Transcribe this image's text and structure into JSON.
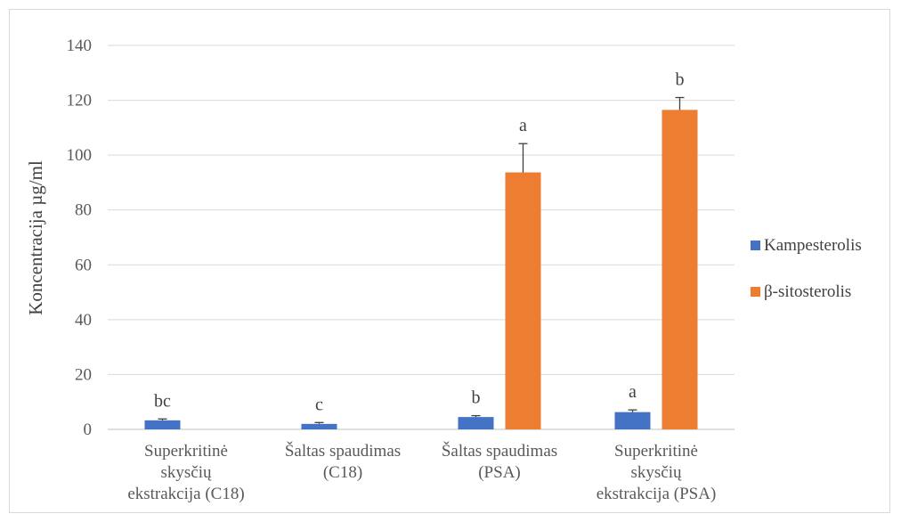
{
  "chart_data": {
    "type": "bar",
    "title": "",
    "xlabel": "",
    "ylabel": "Koncentracija µg/ml",
    "ylim": [
      0,
      140
    ],
    "yticks": [
      0,
      20,
      40,
      60,
      80,
      100,
      120,
      140
    ],
    "grid": true,
    "legend_position": "right",
    "categories": [
      [
        "Superkritinė",
        "skysčių",
        "ekstrakcija (C18)"
      ],
      [
        "Šaltas spaudimas",
        "(C18)"
      ],
      [
        "Šaltas spaudimas",
        "(PSA)"
      ],
      [
        "Superkritinė",
        "skysčių",
        "ekstrakcija (PSA)"
      ]
    ],
    "series": [
      {
        "name": "Kampesterolis",
        "color": "#4472c4",
        "values": [
          3.3,
          2.0,
          4.5,
          6.3
        ],
        "errors": [
          0.5,
          0.5,
          0.5,
          0.8
        ],
        "labels": [
          "bc",
          "c",
          "b",
          "a"
        ]
      },
      {
        "name": "β-sitosterolis",
        "color": "#ed7d31",
        "values": [
          null,
          null,
          93.7,
          116.5
        ],
        "errors": [
          null,
          null,
          10.5,
          4.5
        ],
        "labels": [
          "",
          "",
          "a",
          "b"
        ]
      }
    ]
  }
}
